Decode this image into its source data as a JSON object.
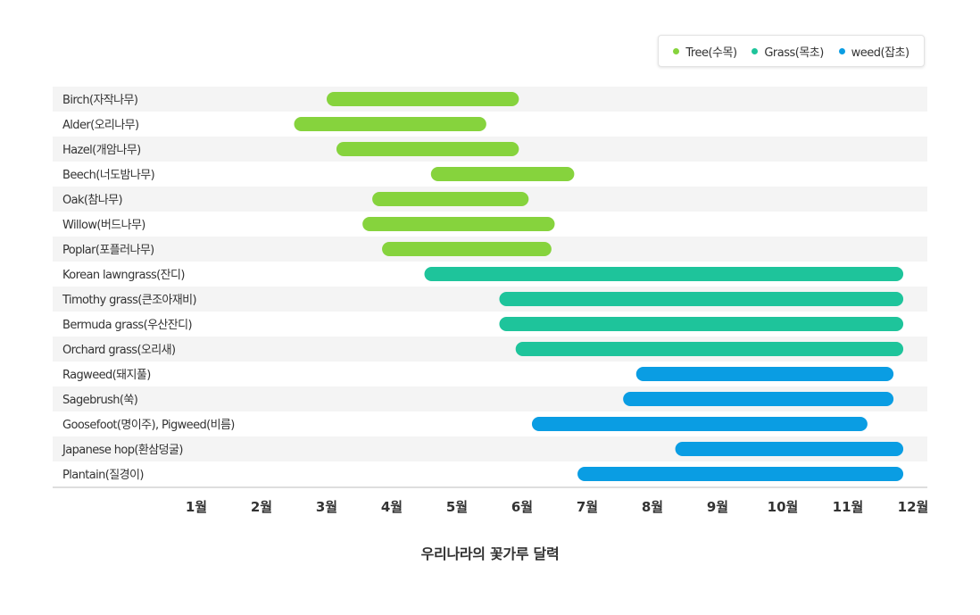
{
  "chart_data": {
    "type": "bar",
    "orientation": "horizontal-range",
    "title": "우리나라의 꽃가루 달력",
    "x_ticks": [
      "1월",
      "2월",
      "3월",
      "4월",
      "5월",
      "6월",
      "7월",
      "8월",
      "9월",
      "10월",
      "11월",
      "12월"
    ],
    "xlim": [
      1,
      12
    ],
    "legend_position": "top-right",
    "series": [
      {
        "name": "Tree(수목)",
        "color": "#86d33d"
      },
      {
        "name": "Grass(목초)",
        "color": "#1ec49b"
      },
      {
        "name": "weed(잡초)",
        "color": "#0a9de3"
      }
    ],
    "rows": [
      {
        "label": "Birch(자작나무)",
        "series": 0,
        "start": 3.0,
        "end": 5.95
      },
      {
        "label": "Alder(오리나무)",
        "series": 0,
        "start": 2.5,
        "end": 5.45
      },
      {
        "label": "Hazel(개암나무)",
        "series": 0,
        "start": 3.15,
        "end": 5.95
      },
      {
        "label": "Beech(너도밤나무)",
        "series": 0,
        "start": 4.6,
        "end": 6.8
      },
      {
        "label": "Oak(참나무)",
        "series": 0,
        "start": 3.7,
        "end": 6.1
      },
      {
        "label": "Willow(버드나무)",
        "series": 0,
        "start": 3.55,
        "end": 6.5
      },
      {
        "label": "Poplar(포플러나무)",
        "series": 0,
        "start": 3.85,
        "end": 6.45
      },
      {
        "label": "Korean lawngrass(잔디)",
        "series": 1,
        "start": 4.5,
        "end": 11.85
      },
      {
        "label": "Timothy grass(큰조아재비)",
        "series": 1,
        "start": 5.65,
        "end": 11.85
      },
      {
        "label": "Bermuda grass(우산잔디)",
        "series": 1,
        "start": 5.65,
        "end": 11.85
      },
      {
        "label": "Orchard grass(오리새)",
        "series": 1,
        "start": 5.9,
        "end": 11.85
      },
      {
        "label": "Ragweed(돼지풀)",
        "series": 2,
        "start": 7.75,
        "end": 11.7
      },
      {
        "label": "Sagebrush(쑥)",
        "series": 2,
        "start": 7.55,
        "end": 11.7
      },
      {
        "label": "Goosefoot(명이주), Pigweed(비름)",
        "series": 2,
        "start": 6.15,
        "end": 11.3
      },
      {
        "label": "Japanese hop(환삼덩굴)",
        "series": 2,
        "start": 8.35,
        "end": 11.85
      },
      {
        "label": "Plantain(질경이)",
        "series": 2,
        "start": 6.85,
        "end": 11.85
      }
    ],
    "grid": false
  }
}
